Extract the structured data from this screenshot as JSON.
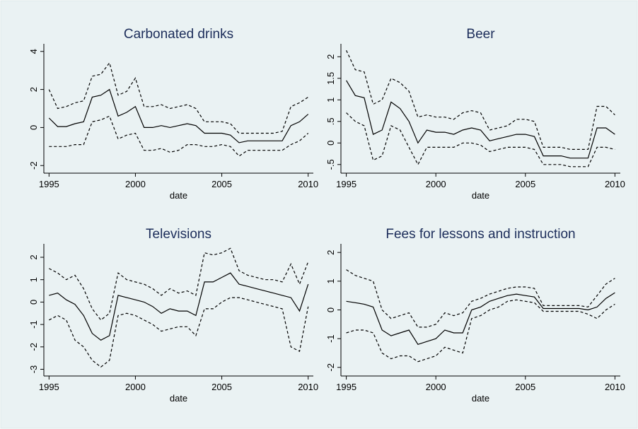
{
  "chart_data": [
    {
      "type": "line",
      "title": "Carbonated drinks",
      "xlabel": "date",
      "x": [
        1995,
        1995.5,
        1996,
        1996.5,
        1997,
        1997.5,
        1998,
        1998.5,
        1999,
        1999.5,
        2000,
        2000.5,
        2001,
        2001.5,
        2002,
        2002.5,
        2003,
        2003.5,
        2004,
        2004.5,
        2005,
        2005.5,
        2006,
        2006.5,
        2007,
        2007.5,
        2008,
        2008.5,
        2009,
        2009.5,
        2010
      ],
      "xlim": [
        1994.7,
        2010.3
      ],
      "xticks": [
        1995,
        2000,
        2005,
        2010
      ],
      "ylim": [
        -2.4,
        4.4
      ],
      "yticks": [
        -2,
        0,
        2,
        4
      ],
      "series": [
        {
          "color": "#000000",
          "dash": "solid",
          "values": [
            0.5,
            0.05,
            0.05,
            0.2,
            0.3,
            1.6,
            1.7,
            2.0,
            0.6,
            0.8,
            1.1,
            0.0,
            0.0,
            0.1,
            0.0,
            0.1,
            0.2,
            0.1,
            -0.3,
            -0.3,
            -0.3,
            -0.4,
            -0.8,
            -0.7,
            -0.7,
            -0.7,
            -0.7,
            -0.7,
            0.1,
            0.3,
            0.7
          ]
        },
        {
          "color": "#000000",
          "dash": "dashed",
          "values": [
            2.0,
            1.0,
            1.1,
            1.3,
            1.4,
            2.7,
            2.8,
            3.4,
            1.7,
            1.9,
            2.6,
            1.1,
            1.1,
            1.2,
            1.0,
            1.1,
            1.2,
            1.0,
            0.3,
            0.3,
            0.3,
            0.2,
            -0.3,
            -0.3,
            -0.3,
            -0.3,
            -0.3,
            -0.2,
            1.1,
            1.3,
            1.6
          ]
        },
        {
          "color": "#000000",
          "dash": "dashed",
          "values": [
            -1.0,
            -1.0,
            -1.0,
            -0.9,
            -0.9,
            0.3,
            0.4,
            0.6,
            -0.6,
            -0.4,
            -0.3,
            -1.2,
            -1.2,
            -1.1,
            -1.3,
            -1.2,
            -0.9,
            -0.9,
            -1.0,
            -1.0,
            -0.9,
            -1.0,
            -1.5,
            -1.2,
            -1.2,
            -1.2,
            -1.2,
            -1.2,
            -0.9,
            -0.7,
            -0.3
          ]
        }
      ]
    },
    {
      "type": "line",
      "title": "Beer",
      "xlabel": "date",
      "x": [
        1995,
        1995.5,
        1996,
        1996.5,
        1997,
        1997.5,
        1998,
        1998.5,
        1999,
        1999.5,
        2000,
        2000.5,
        2001,
        2001.5,
        2002,
        2002.5,
        2003,
        2003.5,
        2004,
        2004.5,
        2005,
        2005.5,
        2006,
        2006.5,
        2007,
        2007.5,
        2008,
        2008.5,
        2009,
        2009.5,
        2010
      ],
      "xlim": [
        1994.7,
        2010.3
      ],
      "xticks": [
        1995,
        2000,
        2005,
        2010
      ],
      "ylim": [
        -0.7,
        2.3
      ],
      "yticks": [
        {
          "value": -0.5,
          "label": "-.5"
        },
        0,
        {
          "value": 0.5,
          "label": ".5"
        },
        1,
        1.5,
        2
      ],
      "series": [
        {
          "color": "#000000",
          "dash": "solid",
          "values": [
            1.45,
            1.1,
            1.05,
            0.2,
            0.3,
            0.95,
            0.8,
            0.5,
            0.0,
            0.3,
            0.25,
            0.25,
            0.2,
            0.3,
            0.35,
            0.3,
            0.05,
            0.1,
            0.15,
            0.2,
            0.2,
            0.15,
            -0.3,
            -0.3,
            -0.3,
            -0.35,
            -0.35,
            -0.35,
            0.35,
            0.35,
            0.2
          ]
        },
        {
          "color": "#000000",
          "dash": "dashed",
          "values": [
            2.15,
            1.7,
            1.65,
            0.9,
            1.0,
            1.5,
            1.4,
            1.2,
            0.6,
            0.65,
            0.6,
            0.6,
            0.55,
            0.7,
            0.75,
            0.7,
            0.3,
            0.35,
            0.4,
            0.55,
            0.55,
            0.5,
            -0.1,
            -0.1,
            -0.1,
            -0.15,
            -0.15,
            -0.15,
            0.85,
            0.85,
            0.65
          ]
        },
        {
          "color": "#000000",
          "dash": "dashed",
          "values": [
            0.7,
            0.5,
            0.4,
            -0.4,
            -0.3,
            0.4,
            0.3,
            -0.1,
            -0.5,
            -0.1,
            -0.1,
            -0.1,
            -0.1,
            0.0,
            0.0,
            -0.05,
            -0.2,
            -0.15,
            -0.1,
            -0.1,
            -0.1,
            -0.15,
            -0.5,
            -0.5,
            -0.5,
            -0.55,
            -0.55,
            -0.55,
            -0.1,
            -0.1,
            -0.15
          ]
        }
      ]
    },
    {
      "type": "line",
      "title": "Televisions",
      "xlabel": "date",
      "x": [
        1995,
        1995.5,
        1996,
        1996.5,
        1997,
        1997.5,
        1998,
        1998.5,
        1999,
        1999.5,
        2000,
        2000.5,
        2001,
        2001.5,
        2002,
        2002.5,
        2003,
        2003.5,
        2004,
        2004.5,
        2005,
        2005.5,
        2006,
        2006.5,
        2007,
        2007.5,
        2008,
        2008.5,
        2009,
        2009.5,
        2010
      ],
      "xlim": [
        1994.7,
        2010.3
      ],
      "xticks": [
        1995,
        2000,
        2005,
        2010
      ],
      "ylim": [
        -3.3,
        2.6
      ],
      "yticks": [
        -3,
        -2,
        -1,
        0,
        1,
        2
      ],
      "series": [
        {
          "color": "#000000",
          "dash": "solid",
          "values": [
            0.3,
            0.4,
            0.1,
            -0.1,
            -0.6,
            -1.4,
            -1.7,
            -1.5,
            0.3,
            0.2,
            0.1,
            0.0,
            -0.2,
            -0.5,
            -0.3,
            -0.4,
            -0.4,
            -0.6,
            0.9,
            0.9,
            1.1,
            1.3,
            0.8,
            0.7,
            0.6,
            0.5,
            0.4,
            0.3,
            0.2,
            -0.4,
            0.8
          ]
        },
        {
          "color": "#000000",
          "dash": "dashed",
          "values": [
            1.5,
            1.3,
            1.0,
            1.2,
            0.6,
            -0.3,
            -0.8,
            -0.5,
            1.3,
            1.0,
            0.9,
            0.8,
            0.6,
            0.3,
            0.6,
            0.4,
            0.5,
            0.3,
            2.2,
            2.1,
            2.2,
            2.4,
            1.4,
            1.2,
            1.1,
            1.0,
            1.0,
            0.9,
            1.7,
            0.8,
            1.8
          ]
        },
        {
          "color": "#000000",
          "dash": "dashed",
          "values": [
            -0.8,
            -0.6,
            -0.8,
            -1.7,
            -2.0,
            -2.6,
            -2.9,
            -2.6,
            -0.6,
            -0.5,
            -0.6,
            -0.8,
            -1.0,
            -1.3,
            -1.2,
            -1.1,
            -1.1,
            -1.5,
            -0.3,
            -0.3,
            0.0,
            0.2,
            0.2,
            0.1,
            0.0,
            -0.1,
            -0.2,
            -0.3,
            -2.0,
            -2.2,
            -0.2
          ]
        }
      ]
    },
    {
      "type": "line",
      "title": "Fees for lessons and instruction",
      "xlabel": "date",
      "x": [
        1995,
        1995.5,
        1996,
        1996.5,
        1997,
        1997.5,
        1998,
        1998.5,
        1999,
        1999.5,
        2000,
        2000.5,
        2001,
        2001.5,
        2002,
        2002.5,
        2003,
        2003.5,
        2004,
        2004.5,
        2005,
        2005.5,
        2006,
        2006.5,
        2007,
        2007.5,
        2008,
        2008.5,
        2009,
        2009.5,
        2010
      ],
      "xlim": [
        1994.7,
        2010.3
      ],
      "xticks": [
        1995,
        2000,
        2005,
        2010
      ],
      "ylim": [
        -2.3,
        2.3
      ],
      "yticks": [
        -2,
        -1,
        0,
        1,
        2
      ],
      "series": [
        {
          "color": "#000000",
          "dash": "solid",
          "values": [
            0.3,
            0.25,
            0.2,
            0.1,
            -0.7,
            -0.9,
            -0.8,
            -0.7,
            -1.2,
            -1.1,
            -1.0,
            -0.7,
            -0.8,
            -0.8,
            0.0,
            0.1,
            0.3,
            0.4,
            0.5,
            0.55,
            0.5,
            0.45,
            0.05,
            0.05,
            0.05,
            0.05,
            0.05,
            0.0,
            0.1,
            0.4,
            0.6
          ]
        },
        {
          "color": "#000000",
          "dash": "dashed",
          "values": [
            1.4,
            1.2,
            1.1,
            1.0,
            0.0,
            -0.3,
            -0.2,
            -0.1,
            -0.6,
            -0.6,
            -0.5,
            -0.1,
            -0.2,
            -0.1,
            0.3,
            0.4,
            0.55,
            0.65,
            0.75,
            0.8,
            0.8,
            0.75,
            0.15,
            0.15,
            0.15,
            0.15,
            0.15,
            0.1,
            0.5,
            0.9,
            1.1
          ]
        },
        {
          "color": "#000000",
          "dash": "dashed",
          "values": [
            -0.8,
            -0.7,
            -0.7,
            -0.8,
            -1.5,
            -1.7,
            -1.6,
            -1.6,
            -1.8,
            -1.7,
            -1.6,
            -1.3,
            -1.4,
            -1.5,
            -0.3,
            -0.2,
            0.0,
            0.1,
            0.3,
            0.35,
            0.3,
            0.25,
            -0.05,
            -0.05,
            -0.05,
            -0.05,
            -0.05,
            -0.15,
            -0.3,
            0.0,
            0.2
          ]
        }
      ]
    }
  ]
}
